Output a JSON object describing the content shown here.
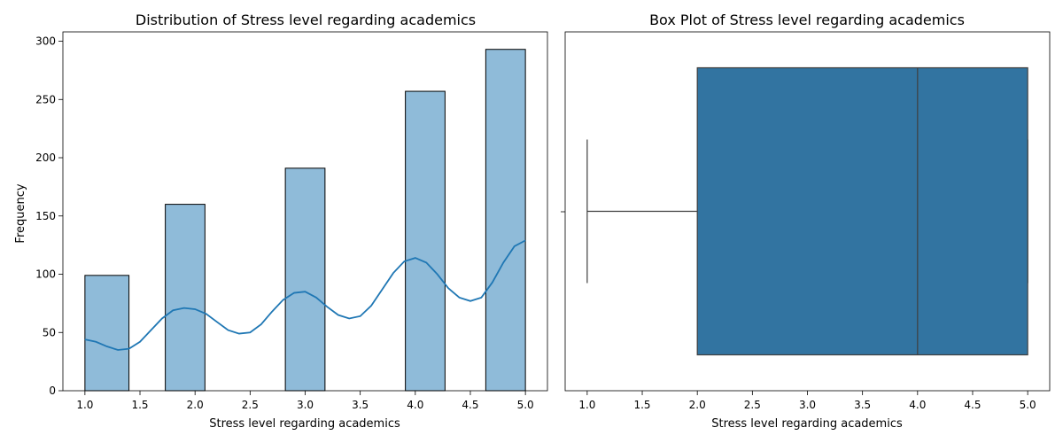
{
  "chart_data": [
    {
      "type": "histogram",
      "title": "Distribution of Stress level regarding academics",
      "xlabel": "Stress level regarding academics",
      "ylabel": "Frequency",
      "xlim": [
        0.8,
        5.2
      ],
      "ylim": [
        0,
        308
      ],
      "xticks": [
        "1.0",
        "1.5",
        "2.0",
        "2.5",
        "3.0",
        "3.5",
        "4.0",
        "4.5",
        "5.0"
      ],
      "yticks": [
        "0",
        "50",
        "100",
        "150",
        "200",
        "250",
        "300"
      ],
      "bins": [
        {
          "x0": 1.0,
          "x1": 1.4,
          "value": 99
        },
        {
          "x0": 1.73,
          "x1": 2.09,
          "value": 160
        },
        {
          "x0": 2.82,
          "x1": 3.18,
          "value": 191
        },
        {
          "x0": 3.91,
          "x1": 4.27,
          "value": 257
        },
        {
          "x0": 4.64,
          "x1": 5.0,
          "value": 293
        }
      ],
      "kde": {
        "x": [
          1.0,
          1.1,
          1.2,
          1.3,
          1.4,
          1.5,
          1.6,
          1.7,
          1.8,
          1.9,
          2.0,
          2.1,
          2.2,
          2.3,
          2.4,
          2.5,
          2.6,
          2.7,
          2.8,
          2.9,
          3.0,
          3.1,
          3.2,
          3.3,
          3.4,
          3.5,
          3.6,
          3.7,
          3.8,
          3.9,
          4.0,
          4.1,
          4.2,
          4.3,
          4.4,
          4.5,
          4.6,
          4.7,
          4.8,
          4.9,
          5.0
        ],
        "y": [
          44,
          42,
          38,
          35,
          36,
          42,
          52,
          62,
          69,
          71,
          70,
          66,
          59,
          52,
          49,
          50,
          57,
          68,
          78,
          84,
          85,
          80,
          72,
          65,
          62,
          64,
          73,
          87,
          101,
          111,
          114,
          110,
          100,
          88,
          80,
          77,
          80,
          93,
          110,
          124,
          129
        ]
      },
      "colors": {
        "bar": "#8fbbd9",
        "line": "#1f77b4"
      }
    },
    {
      "type": "boxplot",
      "title": "Box Plot of Stress level regarding academics",
      "xlabel": "Stress level regarding academics",
      "xlim": [
        0.8,
        5.2
      ],
      "xticks": [
        "1.0",
        "1.5",
        "2.0",
        "2.5",
        "3.0",
        "3.5",
        "4.0",
        "4.5",
        "5.0"
      ],
      "box": {
        "min": 1.0,
        "q1": 2.0,
        "median": 4.0,
        "q3": 5.0,
        "max": 5.0
      },
      "colors": {
        "box": "#3274a1",
        "line": "#3f3f3f"
      }
    }
  ]
}
